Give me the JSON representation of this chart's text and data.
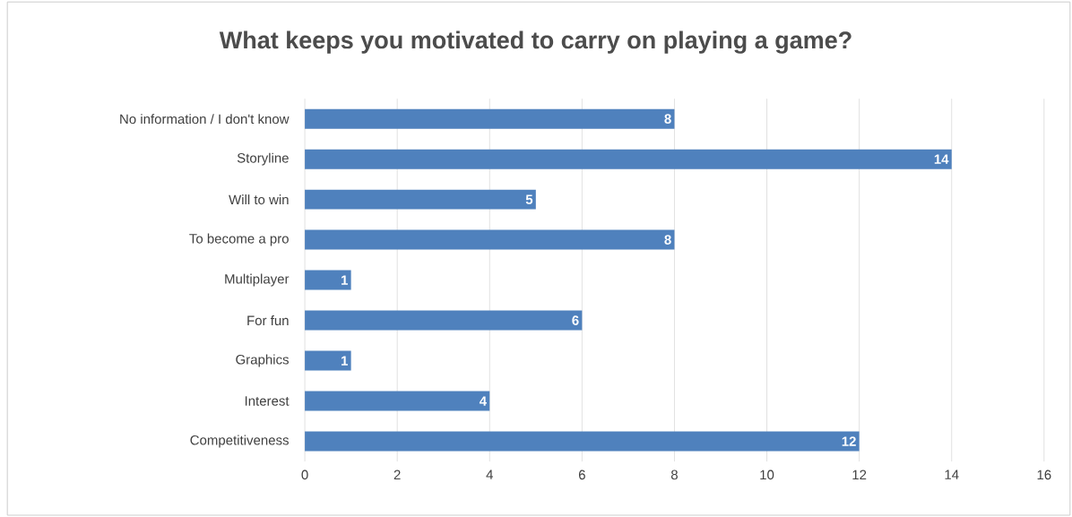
{
  "chart_data": {
    "type": "bar",
    "orientation": "horizontal",
    "title": "What keeps you motivated to carry on playing a game?",
    "categories": [
      "No information / I don't know",
      "Storyline",
      "Will to win",
      "To become a pro",
      "Multiplayer",
      "For fun",
      "Graphics",
      "Interest",
      "Competitiveness"
    ],
    "values": [
      8,
      14,
      5,
      8,
      1,
      6,
      1,
      4,
      12
    ],
    "color": "#4f81bd",
    "xlim": [
      0,
      16
    ],
    "xticks": [
      0,
      2,
      4,
      6,
      8,
      10,
      12,
      14,
      16
    ],
    "grid": "x",
    "data_labels": true
  }
}
